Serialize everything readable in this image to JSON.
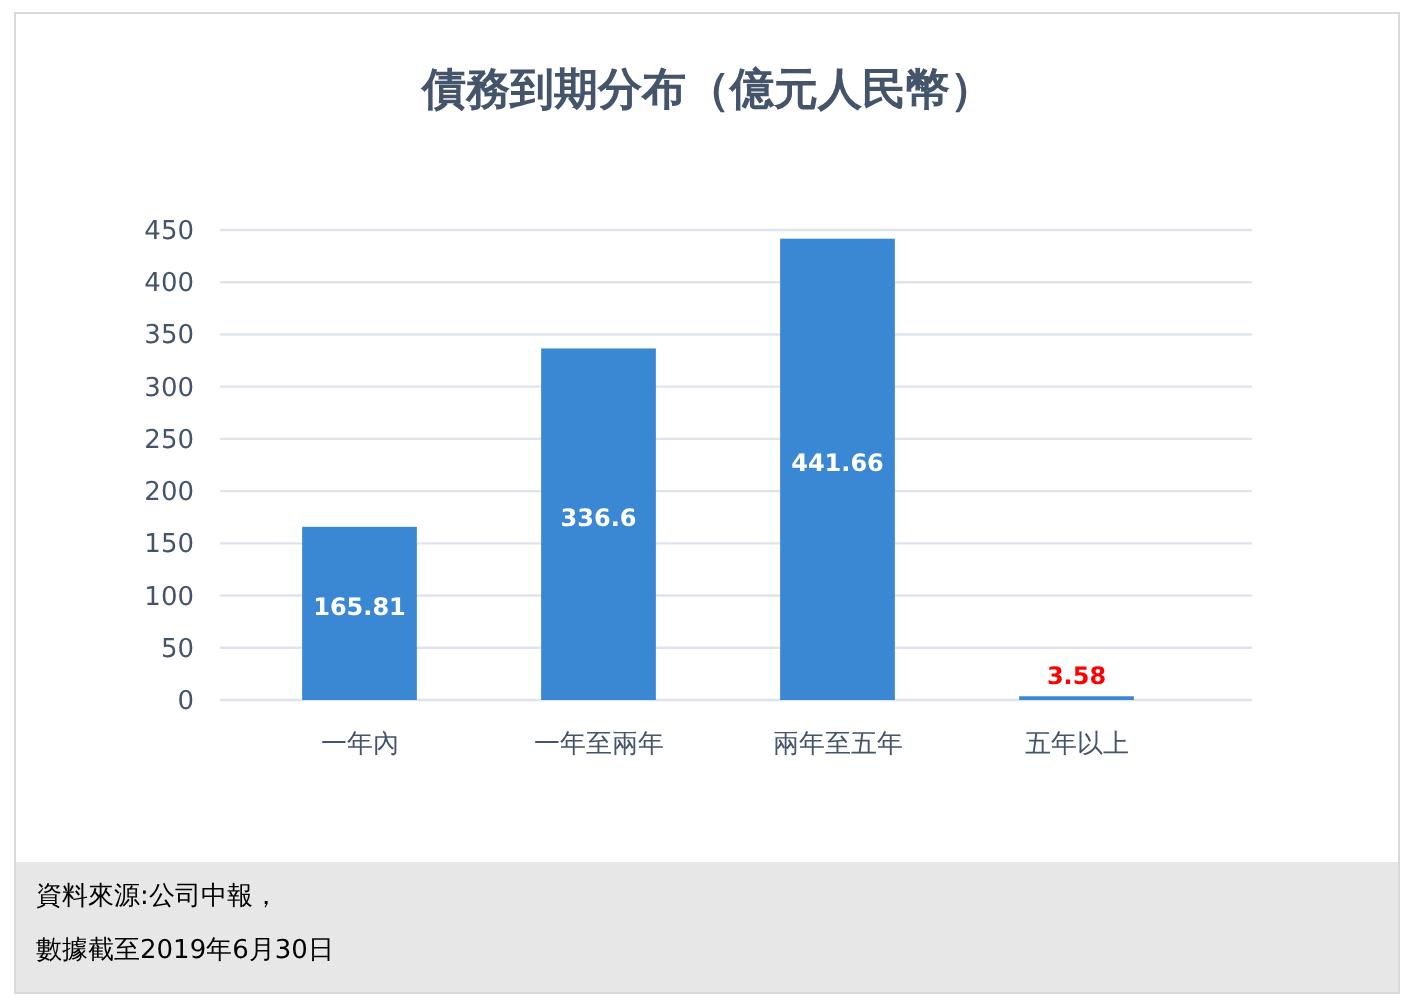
{
  "chart_data": {
    "type": "bar",
    "title": "債務到期分布（億元人民幣）",
    "categories": [
      "一年內",
      "一年至兩年",
      "兩年至五年",
      "五年以上"
    ],
    "values": [
      165.81,
      336.6,
      441.66,
      3.58
    ],
    "color": "#3a87d4",
    "ylim": [
      0,
      450
    ],
    "yticks": [
      0,
      50,
      100,
      150,
      200,
      250,
      300,
      350,
      400,
      450
    ],
    "grid": "y",
    "data_labels": true,
    "annotations": [
      "資料來源:公司中報，",
      "數據截至2019年6月30日"
    ]
  }
}
